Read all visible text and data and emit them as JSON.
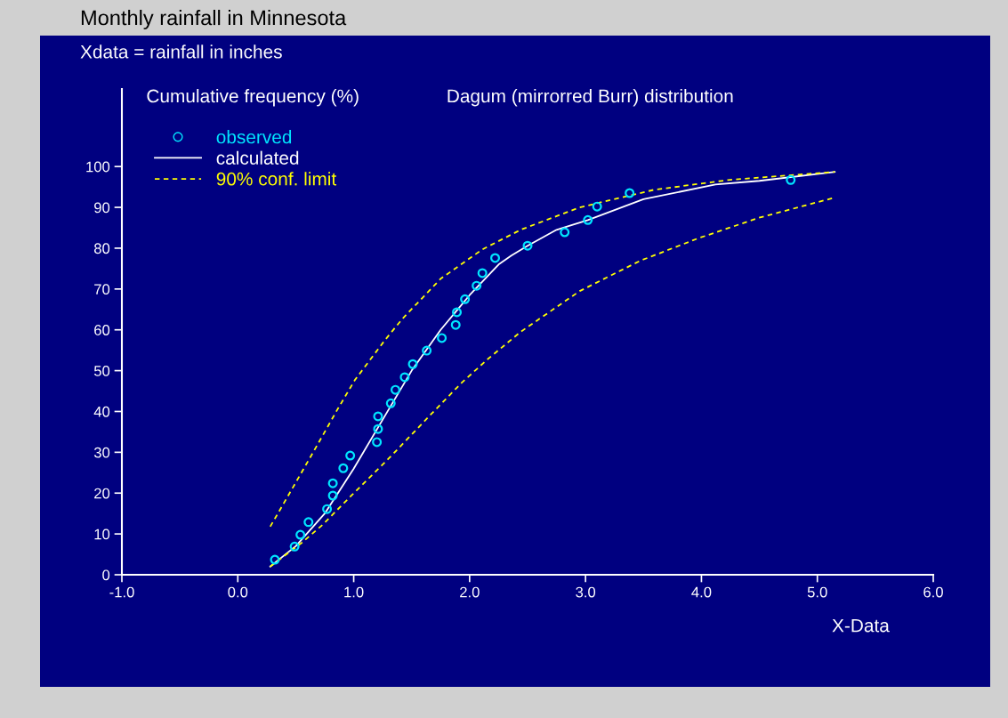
{
  "chart_data": {
    "type": "line",
    "title": "Monthly rainfall in Minnesota",
    "subtitle": "Xdata = rainfall in inches",
    "ylabel": "Cumulative frequency (%)",
    "xlabel": "X-Data",
    "annotations": [
      "Dagum (mirrorred Burr) distribution"
    ],
    "xlim": [
      -1,
      6
    ],
    "xticks": [
      {
        "value": -1,
        "label": "-1.0"
      },
      {
        "value": 0,
        "label": "0.0"
      },
      {
        "value": 1,
        "label": "1.0"
      },
      {
        "value": 2,
        "label": "2.0"
      },
      {
        "value": 3,
        "label": "3.0"
      },
      {
        "value": 4,
        "label": "4.0"
      },
      {
        "value": 5,
        "label": "5.0"
      },
      {
        "value": 6,
        "label": "6.0"
      }
    ],
    "ylim": [
      0,
      119
    ],
    "yticks": [
      0,
      10,
      20,
      30,
      40,
      50,
      60,
      70,
      80,
      90,
      100
    ],
    "grid": false,
    "legend": "top left",
    "series": [
      {
        "name": "observed",
        "type": "scatter",
        "marker": "circle",
        "color": "#00e5ff",
        "x": [
          0.32,
          0.49,
          0.54,
          0.61,
          0.77,
          0.82,
          0.82,
          0.91,
          0.97,
          1.2,
          1.21,
          1.21,
          1.32,
          1.36,
          1.44,
          1.51,
          1.63,
          1.76,
          1.88,
          1.89,
          1.96,
          2.06,
          2.11,
          2.22,
          2.5,
          2.82,
          3.02,
          3.1,
          3.38,
          4.77
        ],
        "values": [
          3.7,
          6.9,
          9.8,
          12.9,
          16.1,
          19.4,
          22.4,
          26.1,
          29.2,
          32.5,
          35.7,
          38.8,
          42.0,
          45.3,
          48.4,
          51.6,
          54.9,
          58.0,
          61.2,
          64.3,
          67.5,
          70.8,
          73.9,
          77.6,
          80.6,
          83.9,
          86.9,
          90.2,
          93.5,
          96.7
        ]
      },
      {
        "name": "calculated",
        "type": "line",
        "line_style": "solid",
        "color": "#ffffff",
        "x": [
          0.28,
          0.5,
          0.75,
          1.0,
          1.25,
          1.5,
          1.75,
          2.0,
          2.25,
          2.36,
          2.5,
          2.75,
          3.02,
          3.5,
          4.12,
          4.5,
          5.15
        ],
        "values": [
          2,
          7,
          15,
          26,
          38,
          50,
          60,
          68.5,
          76,
          78.2,
          80.6,
          84.5,
          86.9,
          92,
          95.6,
          96.5,
          98.7
        ]
      },
      {
        "name": "90% conf. limit",
        "type": "line",
        "line_style": "dashed",
        "color": "#ffff00",
        "x": [
          0.28,
          0.48,
          0.65,
          0.86,
          1.01,
          1.27,
          1.42,
          1.75,
          2.11,
          2.44,
          2.95,
          3.59,
          4.23,
          5.15
        ],
        "values": [
          11.8,
          21.6,
          30,
          40.5,
          47.7,
          57.5,
          62.7,
          72.5,
          79.7,
          84.5,
          90,
          94.3,
          96.7,
          98.7
        ]
      },
      {
        "type": "line",
        "line_style": "dashed",
        "color": "#ffff00",
        "x": [
          0.28,
          0.55,
          0.73,
          0.98,
          1.32,
          1.67,
          1.93,
          2.16,
          2.44,
          2.95,
          3.47,
          3.97,
          4.49,
          5.15
        ],
        "values": [
          2,
          7.8,
          12.2,
          19.4,
          29,
          39.4,
          47,
          52.9,
          59.5,
          69.5,
          76.9,
          82.4,
          87.4,
          92.4
        ]
      }
    ]
  }
}
